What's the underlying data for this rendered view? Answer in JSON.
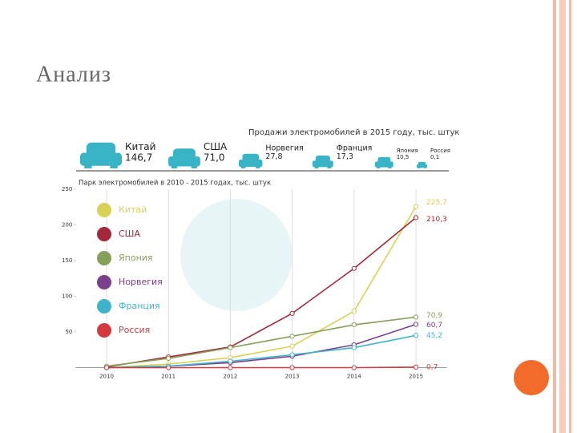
{
  "slide": {
    "title": "Анализ"
  },
  "sales": {
    "title": "Продажи электромобилей в 2015 году, тыс. штук",
    "items": [
      {
        "name": "Китай",
        "value": {
          "value": 146.7,
          "label": "146,7"
        }
      },
      {
        "name": "США",
        "value": {
          "value": 71.0,
          "label": "71,0"
        }
      },
      {
        "name": "Норвегия",
        "value": {
          "value": 27.8,
          "label": "27,8"
        }
      },
      {
        "name": "Франция",
        "value": {
          "value": 17.3,
          "label": "17,3"
        }
      },
      {
        "name": "Япония",
        "value": {
          "value": 10.5,
          "label": "10,5"
        }
      },
      {
        "name": "Россия",
        "value": {
          "value": 0.1,
          "label": "0,1"
        }
      }
    ],
    "color": "#39b3c6"
  },
  "chart_data": {
    "type": "line",
    "title": "Парк электромобилей в 2010 - 2015 годах, тыс. штук",
    "x": [
      2010,
      2011,
      2012,
      2013,
      2014,
      2015
    ],
    "xlim": [
      2009.5,
      2015.5
    ],
    "xticks": [
      2010,
      2011,
      2012,
      2013,
      2014,
      2015
    ],
    "ylim": [
      0,
      250
    ],
    "yticks": [
      50,
      100,
      150,
      200,
      250
    ],
    "grid": true,
    "series": [
      {
        "name": "Китай",
        "color": "#d9d155",
        "values": [
          0,
          5,
          14,
          30,
          79,
          225.7
        ],
        "value_labels": [
          null,
          null,
          null,
          null,
          null,
          "225,7"
        ]
      },
      {
        "name": "США",
        "color": "#a3283a",
        "values": [
          1,
          15,
          29,
          76,
          139,
          210.3
        ],
        "value_labels": [
          null,
          null,
          null,
          null,
          null,
          "210,3"
        ]
      },
      {
        "name": "Япония",
        "color": "#86a05a",
        "values": [
          2,
          13,
          28,
          44,
          60,
          70.9
        ],
        "value_labels": [
          null,
          null,
          null,
          null,
          null,
          "70,9"
        ]
      },
      {
        "name": "Норвегия",
        "color": "#7b3f8c",
        "values": [
          0,
          2,
          7,
          16,
          32,
          60.7
        ],
        "value_labels": [
          null,
          null,
          null,
          null,
          null,
          "60,7"
        ]
      },
      {
        "name": "Франция",
        "color": "#3fb3c9",
        "values": [
          0,
          2,
          9,
          18,
          28,
          45.2
        ],
        "value_labels": [
          null,
          null,
          null,
          null,
          null,
          "45,2"
        ]
      },
      {
        "name": "Россия",
        "color": "#d33a3f",
        "values": [
          0,
          0,
          0,
          0,
          0,
          0.7
        ],
        "value_labels": [
          null,
          null,
          null,
          null,
          null,
          "0,7"
        ]
      }
    ]
  }
}
